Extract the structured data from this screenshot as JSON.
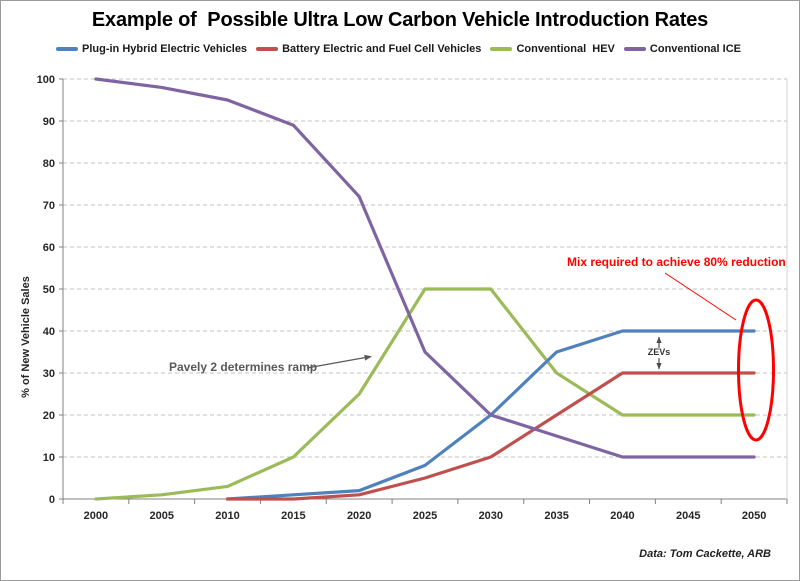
{
  "title": "Example of  Possible Ultra Low Carbon Vehicle Introduction Rates",
  "footer": "Data: Tom Cackette, ARB",
  "annotations": {
    "pavely": "Pavely 2 determines ramp",
    "mix": "Mix required to achieve 80% reduction",
    "zevs": "ZEVs"
  },
  "colors": {
    "annotation_red": "#FF0000",
    "annotation_gray": "#595959",
    "gridline": "#C3C3C3",
    "axis": "#808080"
  },
  "chart_data": {
    "type": "line",
    "title": "Example of  Possible Ultra Low Carbon Vehicle Introduction Rates",
    "xlabel": "",
    "ylabel": "% of New Vehicle Sales",
    "ylim": [
      0,
      100
    ],
    "y_ticks": [
      0,
      10,
      20,
      30,
      40,
      50,
      60,
      70,
      80,
      90,
      100
    ],
    "grid": "horizontal-dashed",
    "legend_position": "top",
    "categories": [
      "2000",
      "2005",
      "2010",
      "2015",
      "2020",
      "2025",
      "2030",
      "2035",
      "2040",
      "2045",
      "2050"
    ],
    "series": [
      {
        "name": "Plug-in Hybrid Electric Vehicles",
        "color": "#4F81BD",
        "values": [
          null,
          null,
          0,
          1,
          2,
          8,
          20,
          35,
          40,
          40,
          40
        ]
      },
      {
        "name": "Battery Electric and Fuel Cell Vehicles",
        "color": "#C0504D",
        "values": [
          null,
          null,
          0,
          0,
          1,
          5,
          10,
          20,
          30,
          30,
          30
        ]
      },
      {
        "name": "Conventional  HEV",
        "color": "#9BBB59",
        "values": [
          0,
          1,
          3,
          10,
          25,
          50,
          50,
          30,
          20,
          20,
          20
        ]
      },
      {
        "name": "Conventional ICE",
        "color": "#8064A2",
        "values": [
          100,
          98,
          95,
          89,
          72,
          35,
          20,
          15,
          10,
          10,
          10
        ]
      }
    ]
  }
}
